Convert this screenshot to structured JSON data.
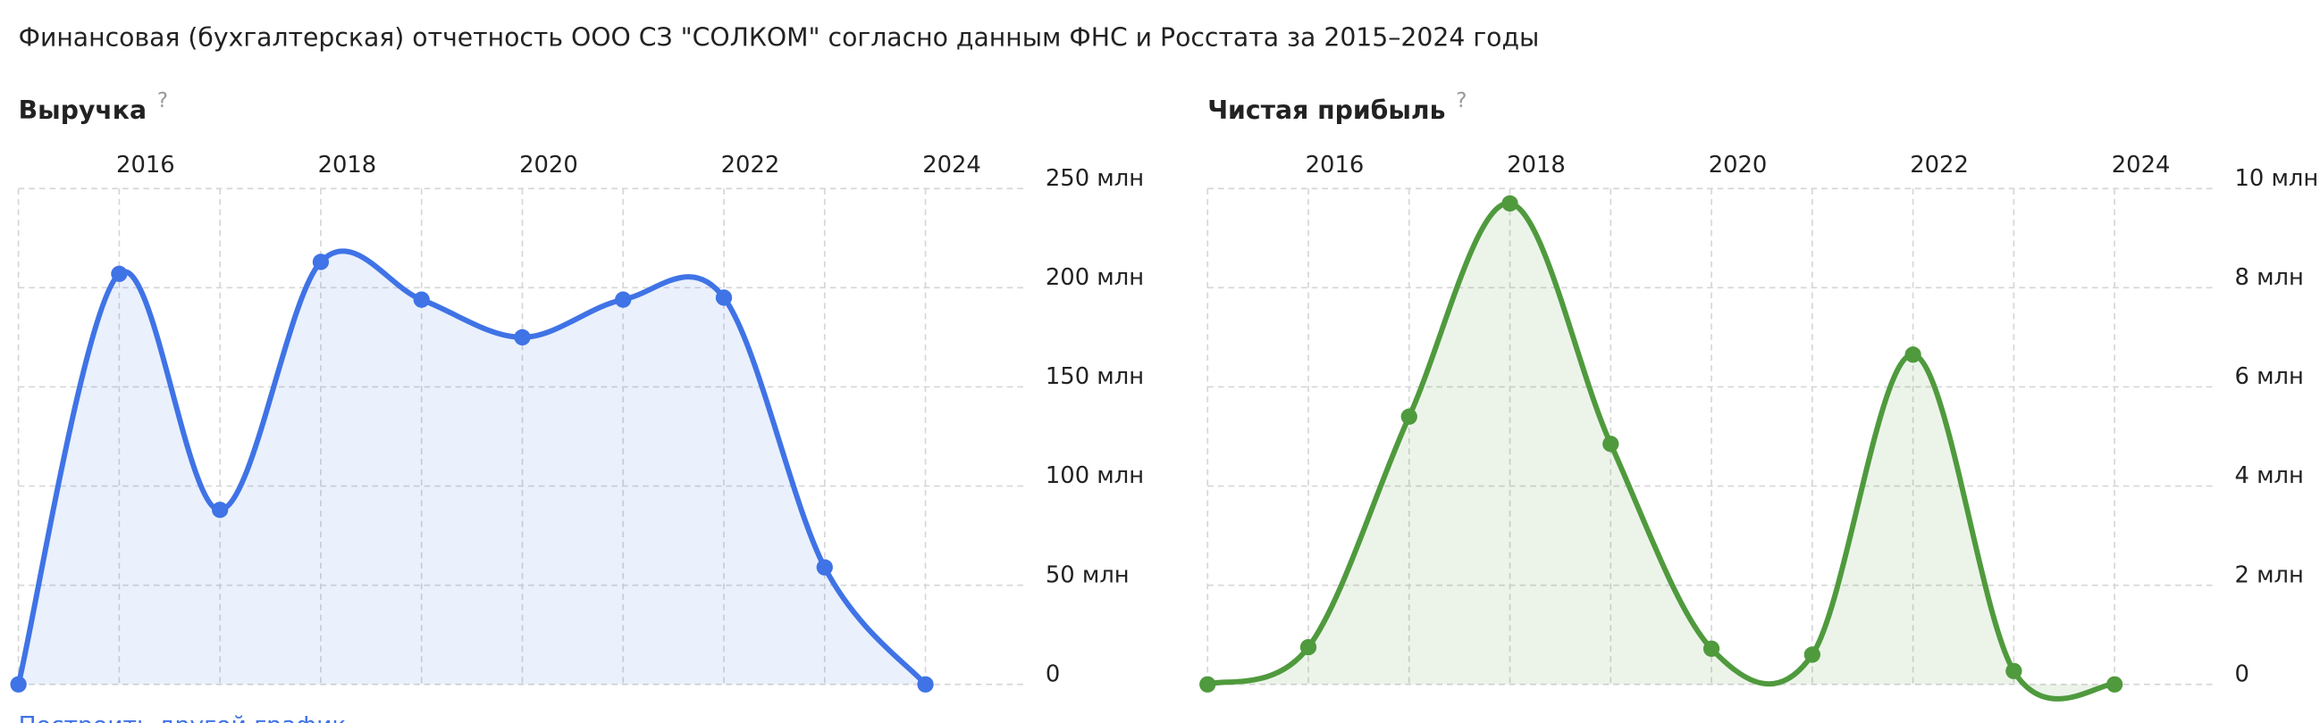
{
  "header": {
    "title": "Финансовая (бухгалтерская) отчетность ООО СЗ \"СОЛКОМ\" согласно данным ФНС и Росстата за 2015–2024 годы"
  },
  "link": "Построить другой график",
  "chart_data": [
    {
      "type": "line",
      "title": "Выручка",
      "title_hint": "?",
      "color": "#3f73e6",
      "x": [
        2015,
        2016,
        2017,
        2018,
        2019,
        2020,
        2021,
        2022,
        2023,
        2024
      ],
      "values": [
        0,
        207,
        88,
        213,
        194,
        175,
        194,
        195,
        59,
        0
      ],
      "xlim": [
        2015,
        2025
      ],
      "xticks": [
        2016,
        2018,
        2020,
        2022,
        2024
      ],
      "ylim": [
        0,
        250
      ],
      "yticks": [
        0,
        {
          "value": 50,
          "label": "50 млн"
        },
        {
          "value": 100,
          "label": "100 млн"
        },
        {
          "value": 150,
          "label": "150 млн"
        },
        {
          "value": 200,
          "label": "200 млн"
        },
        {
          "value": 250,
          "label": "250 млн"
        }
      ],
      "grid": true
    },
    {
      "type": "line",
      "title": "Чистая прибыль",
      "title_hint": "?",
      "color": "#4f9a3d",
      "x": [
        2015,
        2016,
        2017,
        2018,
        2019,
        2020,
        2021,
        2022,
        2023,
        2024
      ],
      "values": [
        0,
        0.75,
        5.4,
        9.7,
        4.85,
        0.72,
        0.6,
        6.65,
        0.27,
        0
      ],
      "xlim": [
        2015,
        2025
      ],
      "xticks": [
        2016,
        2018,
        2020,
        2022,
        2024
      ],
      "ylim": [
        0,
        10
      ],
      "yticks": [
        0,
        {
          "value": 2,
          "label": "2 млн"
        },
        {
          "value": 4,
          "label": "4 млн"
        },
        {
          "value": 6,
          "label": "6 млн"
        },
        {
          "value": 8,
          "label": "8 млн"
        },
        {
          "value": 10,
          "label": "10 млн"
        }
      ],
      "grid": true
    }
  ]
}
